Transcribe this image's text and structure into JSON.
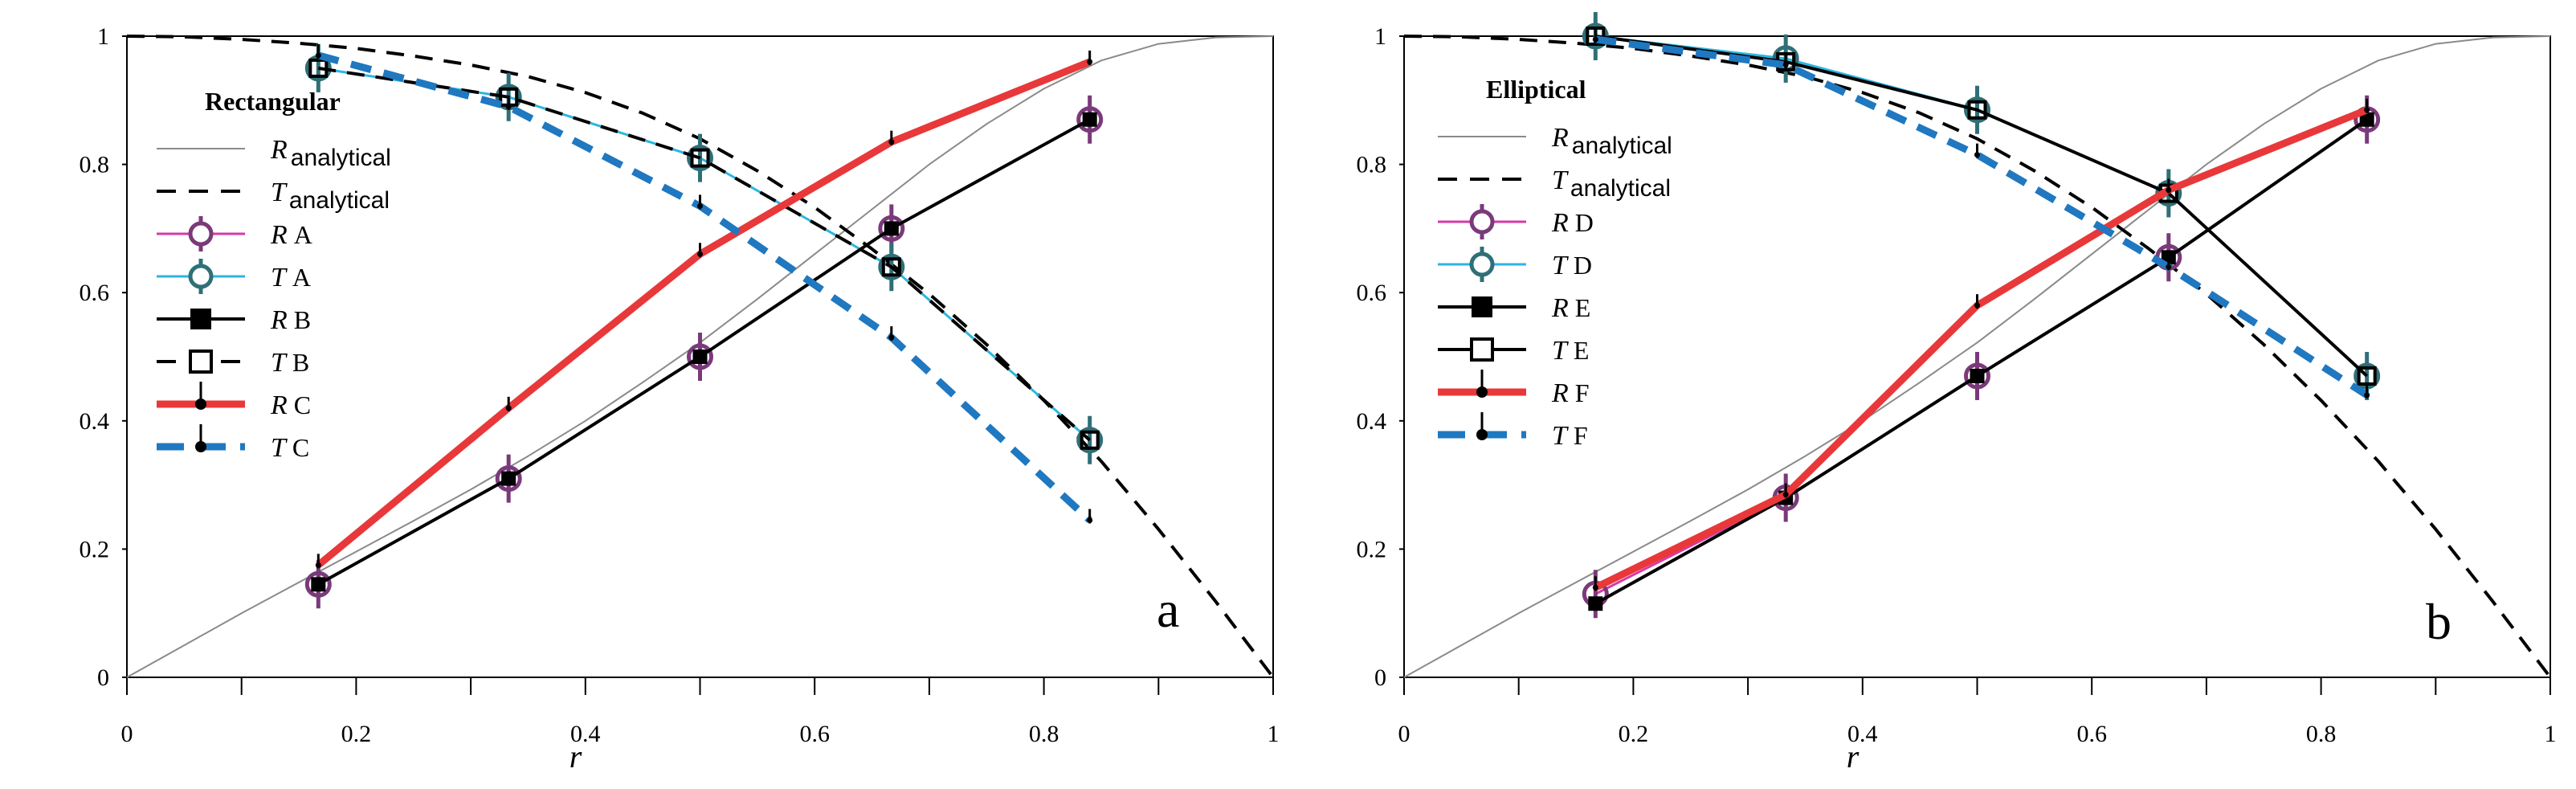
{
  "colors": {
    "analytical_R": "#8a8a8a",
    "analytical_T": "#000000",
    "A_R": "#d63aa6",
    "A_T": "#2bb6e0",
    "B": "#000000",
    "C_R": "#e8383a",
    "C_T": "#1f78c0",
    "marker_purple": "#7a3a7a",
    "marker_teal": "#2f6f78"
  },
  "chart_data": [
    {
      "type": "line",
      "panel_letter": "a",
      "title": "",
      "xlabel": "r",
      "ylabel": "",
      "xlim": [
        0,
        1
      ],
      "ylim": [
        0,
        1
      ],
      "grid": false,
      "xticks": [
        "0",
        "0.2",
        "0.4",
        "0.6",
        "0.8",
        "1"
      ],
      "yticks": [
        "0",
        "0.2",
        "0.4",
        "0.6",
        "0.8",
        "1"
      ],
      "legend_title": "Rectangular",
      "legend_placement": "top-left",
      "series": [
        {
          "var": "R",
          "label_sub": "analytical",
          "style": "thin",
          "color": "#8a8a8a",
          "marker": "none",
          "x": [
            0,
            0.05,
            0.1,
            0.15,
            0.2,
            0.25,
            0.3,
            0.35,
            0.4,
            0.45,
            0.5,
            0.55,
            0.6,
            0.65,
            0.7,
            0.75,
            0.8,
            0.85,
            0.9,
            0.95,
            1
          ],
          "y": [
            0,
            0.05,
            0.1,
            0.148,
            0.196,
            0.244,
            0.293,
            0.345,
            0.4,
            0.46,
            0.522,
            0.59,
            0.66,
            0.73,
            0.8,
            0.863,
            0.918,
            0.962,
            0.988,
            0.998,
            1
          ]
        },
        {
          "var": "T",
          "label_sub": "analytical",
          "style": "dashed",
          "color": "#000000",
          "marker": "none",
          "x": [
            0,
            0.05,
            0.1,
            0.15,
            0.2,
            0.25,
            0.3,
            0.35,
            0.4,
            0.45,
            0.5,
            0.55,
            0.6,
            0.65,
            0.7,
            0.75,
            0.8,
            0.85,
            0.9,
            0.95,
            1
          ],
          "y": [
            1,
            0.999,
            0.995,
            0.989,
            0.981,
            0.969,
            0.955,
            0.937,
            0.912,
            0.88,
            0.84,
            0.79,
            0.733,
            0.668,
            0.598,
            0.519,
            0.432,
            0.337,
            0.231,
            0.118,
            0
          ]
        },
        {
          "var": "R",
          "label_tag": "A",
          "style": "thin-solid",
          "color": "#d63aa6",
          "marker": "circle",
          "marker_color": "#7a3a7a",
          "x": [
            0.167,
            0.333,
            0.5,
            0.667,
            0.84
          ],
          "y": [
            0.145,
            0.31,
            0.5,
            0.7,
            0.87
          ]
        },
        {
          "var": "T",
          "label_tag": "A",
          "style": "thin-solid",
          "color": "#2bb6e0",
          "marker": "circle",
          "marker_color": "#2f6f78",
          "x": [
            0.167,
            0.333,
            0.5,
            0.667,
            0.84
          ],
          "y": [
            0.95,
            0.905,
            0.81,
            0.64,
            0.37
          ]
        },
        {
          "var": "R",
          "label_tag": "B",
          "style": "solid",
          "color": "#000000",
          "marker": "filled-square",
          "x": [
            0.167,
            0.333,
            0.5,
            0.667,
            0.84
          ],
          "y": [
            0.145,
            0.31,
            0.5,
            0.7,
            0.87
          ]
        },
        {
          "var": "T",
          "label_tag": "B",
          "style": "dashed",
          "color": "#000000",
          "marker": "open-square",
          "x": [
            0.167,
            0.333,
            0.5,
            0.667,
            0.84
          ],
          "y": [
            0.95,
            0.905,
            0.81,
            0.64,
            0.37
          ]
        },
        {
          "var": "R",
          "label_tag": "C",
          "style": "thick",
          "color": "#e8383a",
          "marker": "pin",
          "x": [
            0.167,
            0.333,
            0.5,
            0.667,
            0.84
          ],
          "y": [
            0.175,
            0.42,
            0.66,
            0.835,
            0.96
          ]
        },
        {
          "var": "T",
          "label_tag": "C",
          "style": "thick-dashed",
          "color": "#1f78c0",
          "marker": "pin",
          "x": [
            0.167,
            0.333,
            0.5,
            0.667,
            0.84
          ],
          "y": [
            0.97,
            0.89,
            0.735,
            0.53,
            0.245
          ]
        }
      ]
    },
    {
      "type": "line",
      "panel_letter": "b",
      "title": "",
      "xlabel": "r",
      "ylabel": "",
      "xlim": [
        0,
        1
      ],
      "ylim": [
        0,
        1
      ],
      "grid": false,
      "xticks": [
        "0",
        "0.2",
        "0.4",
        "0.6",
        "0.8",
        "1"
      ],
      "yticks": [
        "0",
        "0.2",
        "0.4",
        "0.6",
        "0.8",
        "1"
      ],
      "legend_title": "Elliptical",
      "legend_placement": "top-left",
      "series": [
        {
          "var": "R",
          "label_sub": "analytical",
          "style": "thin",
          "color": "#8a8a8a",
          "marker": "none",
          "x": [
            0,
            0.05,
            0.1,
            0.15,
            0.2,
            0.25,
            0.3,
            0.35,
            0.4,
            0.45,
            0.5,
            0.55,
            0.6,
            0.65,
            0.7,
            0.75,
            0.8,
            0.85,
            0.9,
            0.95,
            1
          ],
          "y": [
            0,
            0.05,
            0.1,
            0.148,
            0.196,
            0.244,
            0.293,
            0.345,
            0.4,
            0.46,
            0.522,
            0.59,
            0.66,
            0.73,
            0.8,
            0.863,
            0.918,
            0.962,
            0.988,
            0.998,
            1
          ]
        },
        {
          "var": "T",
          "label_sub": "analytical",
          "style": "dashed",
          "color": "#000000",
          "marker": "none",
          "x": [
            0,
            0.05,
            0.1,
            0.15,
            0.2,
            0.25,
            0.3,
            0.35,
            0.4,
            0.45,
            0.5,
            0.55,
            0.6,
            0.65,
            0.7,
            0.75,
            0.8,
            0.85,
            0.9,
            0.95,
            1
          ],
          "y": [
            1,
            0.999,
            0.995,
            0.989,
            0.981,
            0.969,
            0.955,
            0.937,
            0.912,
            0.88,
            0.84,
            0.79,
            0.733,
            0.668,
            0.598,
            0.519,
            0.432,
            0.337,
            0.231,
            0.118,
            0
          ]
        },
        {
          "var": "R",
          "label_tag": "D",
          "style": "thin-solid",
          "color": "#d63aa6",
          "marker": "circle",
          "marker_color": "#7a3a7a",
          "x": [
            0.167,
            0.333,
            0.5,
            0.667,
            0.84
          ],
          "y": [
            0.13,
            0.28,
            0.47,
            0.655,
            0.87
          ]
        },
        {
          "var": "T",
          "label_tag": "D",
          "style": "thin-solid",
          "color": "#2bb6e0",
          "marker": "circle",
          "marker_color": "#2f6f78",
          "x": [
            0.167,
            0.333,
            0.5,
            0.667,
            0.84
          ],
          "y": [
            1.0,
            0.965,
            0.885,
            0.755,
            0.47
          ]
        },
        {
          "var": "R",
          "label_tag": "E",
          "style": "solid",
          "color": "#000000",
          "marker": "filled-square",
          "x": [
            0.167,
            0.333,
            0.5,
            0.667,
            0.84
          ],
          "y": [
            0.115,
            0.28,
            0.47,
            0.655,
            0.87
          ]
        },
        {
          "var": "T",
          "label_tag": "E",
          "style": "solid",
          "color": "#000000",
          "marker": "open-square",
          "x": [
            0.167,
            0.333,
            0.5,
            0.667,
            0.84
          ],
          "y": [
            1.0,
            0.96,
            0.885,
            0.755,
            0.47
          ]
        },
        {
          "var": "R",
          "label_tag": "F",
          "style": "thick",
          "color": "#e8383a",
          "marker": "pin",
          "x": [
            0.167,
            0.333,
            0.5,
            0.667,
            0.84
          ],
          "y": [
            0.14,
            0.285,
            0.58,
            0.76,
            0.885
          ]
        },
        {
          "var": "T",
          "label_tag": "F",
          "style": "thick-dashed",
          "color": "#1f78c0",
          "marker": "pin",
          "x": [
            0.167,
            0.333,
            0.5,
            0.667,
            0.84
          ],
          "y": [
            0.995,
            0.955,
            0.815,
            0.64,
            0.44
          ]
        }
      ]
    }
  ]
}
